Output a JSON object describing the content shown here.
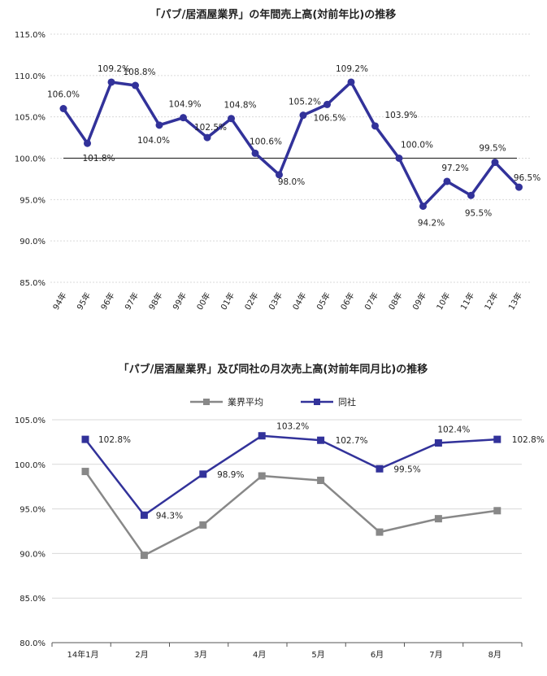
{
  "chart_data": [
    {
      "type": "line",
      "title": "「パブ/居酒屋業界」の年間売上高(対前年比)の推移",
      "categories": [
        "94年",
        "95年",
        "96年",
        "97年",
        "98年",
        "99年",
        "00年",
        "01年",
        "02年",
        "03年",
        "04年",
        "05年",
        "06年",
        "07年",
        "08年",
        "09年",
        "10年",
        "11年",
        "12年",
        "13年"
      ],
      "series": [
        {
          "name": "同社",
          "color": "#32329a",
          "values": [
            106.0,
            101.8,
            109.2,
            108.8,
            104.0,
            104.9,
            102.5,
            104.8,
            100.6,
            98.0,
            105.2,
            106.5,
            109.2,
            103.9,
            100.0,
            94.2,
            97.2,
            95.5,
            99.5,
            96.5
          ],
          "labels": [
            "106.0%",
            "101.8%",
            "109.2%",
            "108.8%",
            "104.0%",
            "104.9%",
            "102.5%",
            "104.8%",
            "100.6%",
            "98.0%",
            "105.2%",
            "106.5%",
            "109.2%",
            "103.9%",
            "100.0%",
            "94.2%",
            "97.2%",
            "95.5%",
            "99.5%",
            "96.5%"
          ]
        }
      ],
      "reference_line": 100.0,
      "ylim": [
        85.0,
        115.0
      ],
      "yticks": [
        "115.0%",
        "110.0%",
        "105.0%",
        "100.0%",
        "95.0%",
        "90.0%",
        "85.0%"
      ],
      "xlabel": "",
      "ylabel": ""
    },
    {
      "type": "line",
      "title": "「パブ/居酒屋業界」及び同社の月次売上高(対前年同月比)の推移",
      "categories": [
        "14年1月",
        "2月",
        "3月",
        "4月",
        "5月",
        "6月",
        "7月",
        "8月"
      ],
      "series": [
        {
          "name": "業界平均",
          "color": "#888888",
          "values": [
            99.2,
            89.8,
            93.2,
            98.7,
            98.2,
            92.4,
            93.9,
            94.8
          ]
        },
        {
          "name": "同社",
          "color": "#32329a",
          "values": [
            102.8,
            94.3,
            98.9,
            103.2,
            102.7,
            99.5,
            102.4,
            102.8
          ],
          "labels": [
            "102.8%",
            "94.3%",
            "98.9%",
            "103.2%",
            "102.7%",
            "99.5%",
            "102.4%",
            "102.8%"
          ]
        }
      ],
      "ylim": [
        80.0,
        105.0
      ],
      "yticks": [
        "105.0%",
        "100.0%",
        "95.0%",
        "90.0%",
        "85.0%",
        "80.0%"
      ],
      "legend": {
        "position": "top",
        "entries": [
          "業界平均",
          "同社"
        ]
      },
      "xlabel": "",
      "ylabel": ""
    }
  ]
}
